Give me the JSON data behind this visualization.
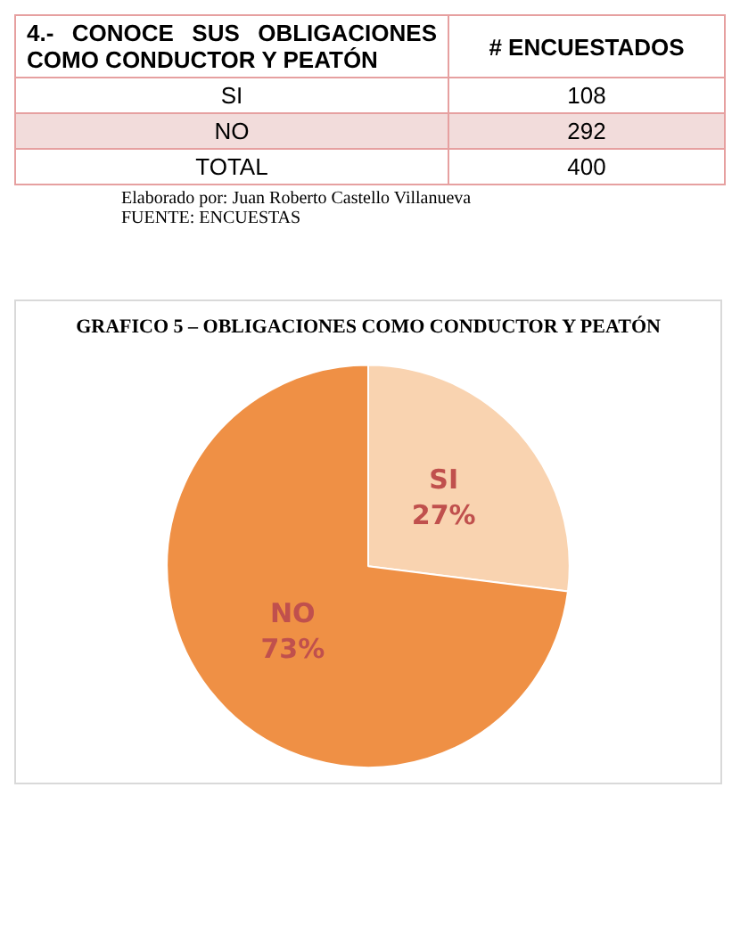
{
  "chart_data": {
    "type": "pie",
    "title": "GRAFICO 5 – OBLIGACIONES COMO CONDUCTOR Y PEATÓN",
    "categories": [
      "SI",
      "NO"
    ],
    "values": [
      27,
      73
    ],
    "value_labels": [
      "27%",
      "73%"
    ],
    "colors": [
      "#f9d3b0",
      "#ef9045"
    ],
    "legend": false,
    "annotations": [
      "4.- CONOCE SUS OBLIGACIONES COMO CONDUCTOR Y PEATÓN",
      "# ENCUESTADOS",
      "108",
      "292",
      "TOTAL",
      "400",
      "Elaborado por: Juan Roberto Castello Villanueva",
      "FUENTE: ENCUESTAS"
    ]
  }
}
